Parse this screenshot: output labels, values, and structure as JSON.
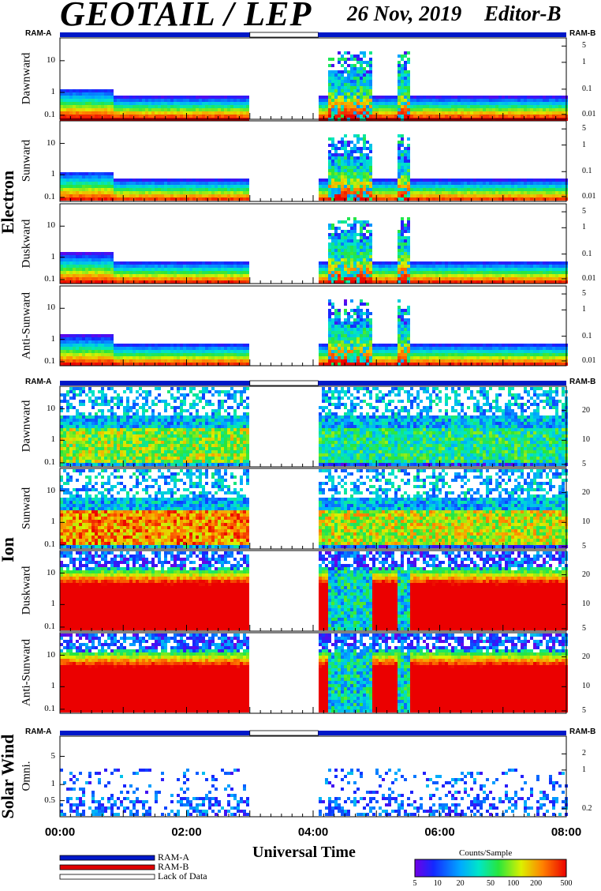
{
  "header": {
    "title": "GEOTAIL / LEP",
    "date": "26 Nov, 2019",
    "editor": "Editor-B"
  },
  "ram_labels": {
    "left": "RAM-A",
    "right": "RAM-B"
  },
  "groups": {
    "electron": "Electron",
    "ion": "Ion",
    "solar_wind": "Solar Wind"
  },
  "panels": [
    {
      "label": "Dawnward",
      "group": "electron"
    },
    {
      "label": "Sunward",
      "group": "electron"
    },
    {
      "label": "Duskward",
      "group": "electron"
    },
    {
      "label": "Anti-Sunward",
      "group": "electron"
    },
    {
      "label": "Dawnward",
      "group": "ion"
    },
    {
      "label": "Sunward",
      "group": "ion"
    },
    {
      "label": "Duskward",
      "group": "ion"
    },
    {
      "label": "Anti-Sunward",
      "group": "ion"
    },
    {
      "label": "Omni.",
      "group": "solar_wind"
    }
  ],
  "left_ticks": {
    "electron": [
      "10",
      "1",
      "0.1"
    ],
    "ion": [
      "10",
      "1",
      "0.1"
    ],
    "solar_wind": [
      "5",
      "1",
      "0.5"
    ]
  },
  "right_ticks": {
    "electron": [
      "5",
      "1",
      "0.1",
      "0.01"
    ],
    "ion": [
      "20",
      "10",
      "5"
    ],
    "solar_wind": [
      "2",
      "1",
      "0.2"
    ]
  },
  "x_axis": {
    "label": "Universal Time",
    "ticks": [
      "00:00",
      "02:00",
      "04:00",
      "06:00",
      "08:00"
    ]
  },
  "legend": {
    "ram_a": "RAM-A",
    "ram_b": "RAM-B",
    "lack": "Lack of Data"
  },
  "colorbar": {
    "title": "Counts/Sample",
    "ticks": [
      "5",
      "10",
      "20",
      "50",
      "100",
      "200",
      "500"
    ]
  },
  "colors": {
    "ram_a": "#0018c8",
    "ram_b": "#e00000",
    "text": "#000000"
  },
  "chart_data": {
    "type": "heatmap",
    "title": "GEOTAIL / LEP",
    "xlabel": "Universal Time",
    "x_ticks": [
      "00:00",
      "02:00",
      "04:00",
      "06:00",
      "08:00"
    ],
    "x_range": [
      "00:00",
      "08:00"
    ],
    "data_gap": [
      "03:00",
      "04:05"
    ],
    "colorscale": {
      "label": "Counts/Sample",
      "range": [
        5,
        500
      ],
      "log": true
    },
    "panels": [
      "Electron Dawnward",
      "Electron Sunward",
      "Electron Duskward",
      "Electron Anti-Sunward",
      "Ion Dawnward",
      "Ion Sunward",
      "Ion Duskward",
      "Ion Anti-Sunward",
      "Solar Wind Omni."
    ],
    "y_scale": "log",
    "grid": false
  }
}
